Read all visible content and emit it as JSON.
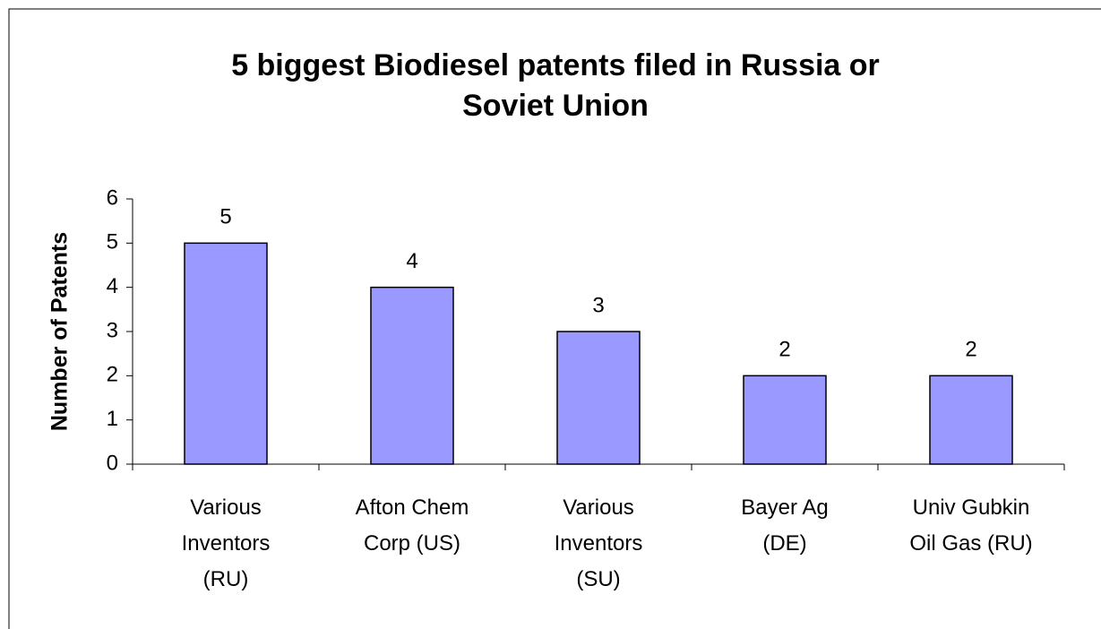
{
  "chart_data": {
    "type": "bar",
    "title": "5 biggest Biodiesel patents filed in Russia or\nSoviet Union",
    "y_label": "Number of Patents",
    "categories": [
      "Various\nInventors\n(RU)",
      "Afton Chem\nCorp (US)",
      "Various\nInventors\n(SU)",
      "Bayer Ag\n(DE)",
      "Univ Gubkin\nOil Gas (RU)"
    ],
    "values": [
      5,
      4,
      3,
      2,
      2
    ],
    "color": "#9999ff",
    "ylim": [
      0,
      6
    ],
    "yticks": [
      0,
      1,
      2,
      3,
      4,
      5,
      6
    ],
    "grid": false
  }
}
